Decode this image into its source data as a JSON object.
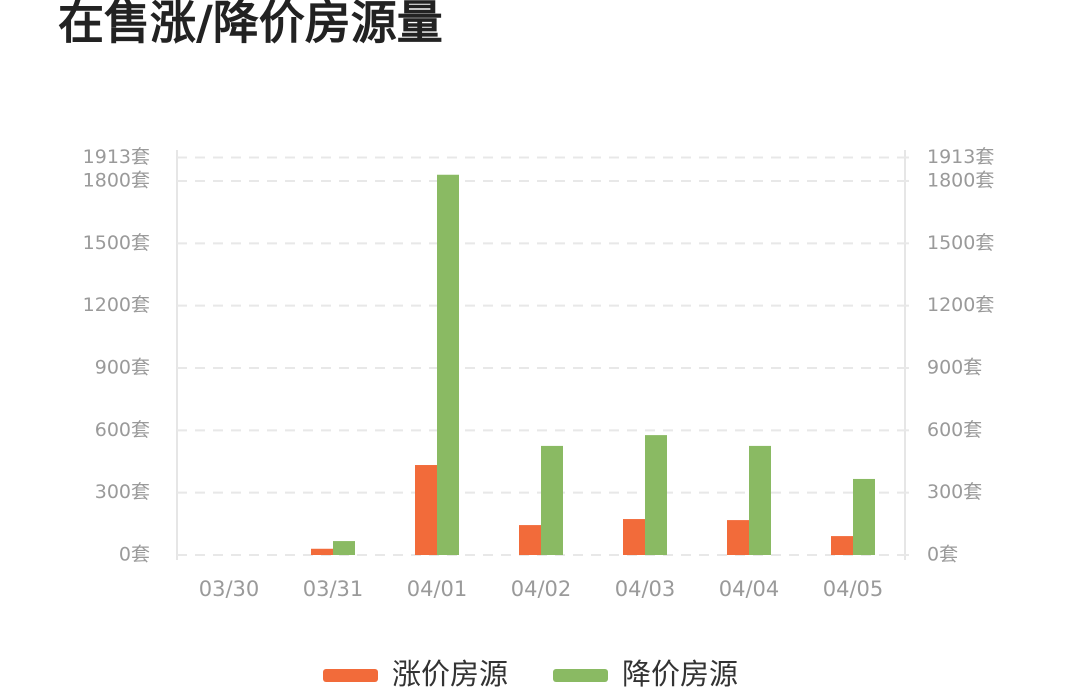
{
  "chart_data": {
    "type": "bar",
    "title": "在售涨/降价房源量",
    "categories": [
      "03/30",
      "03/31",
      "04/01",
      "04/02",
      "04/03",
      "04/04",
      "04/05"
    ],
    "series": [
      {
        "name": "涨价房源",
        "color": "#f26b3a",
        "values": [
          0,
          30,
          433,
          144,
          173,
          168,
          91
        ]
      },
      {
        "name": "降价房源",
        "color": "#8aba63",
        "values": [
          0,
          67,
          1830,
          525,
          577,
          525,
          366
        ],
        "axis": "y2"
      }
    ],
    "ylim": [
      0,
      1913
    ],
    "yticks": [
      {
        "value": 0,
        "label": "0套"
      },
      {
        "value": 300,
        "label": "300套"
      },
      {
        "value": 600,
        "label": "600套"
      },
      {
        "value": 900,
        "label": "900套"
      },
      {
        "value": 1200,
        "label": "1200套"
      },
      {
        "value": 1500,
        "label": "1500套"
      },
      {
        "value": 1800,
        "label": "1800套"
      },
      {
        "value": 1913,
        "label": "1913套"
      }
    ],
    "y2lim": [
      0,
      1913
    ],
    "y2ticks": [
      {
        "value": 0,
        "label": "0套"
      },
      {
        "value": 300,
        "label": "300套"
      },
      {
        "value": 600,
        "label": "600套"
      },
      {
        "value": 900,
        "label": "900套"
      },
      {
        "value": 1200,
        "label": "1200套"
      },
      {
        "value": 1500,
        "label": "1500套"
      },
      {
        "value": 1800,
        "label": "1800套"
      },
      {
        "value": 1913,
        "label": "1913套"
      }
    ],
    "grid": true,
    "legend": "bottom"
  }
}
